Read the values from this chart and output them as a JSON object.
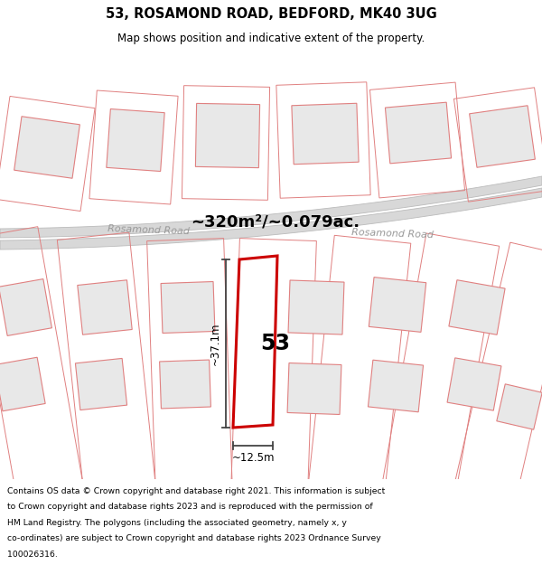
{
  "title": "53, ROSAMOND ROAD, BEDFORD, MK40 3UG",
  "subtitle": "Map shows position and indicative extent of the property.",
  "area_label": "~320m²/~0.079ac.",
  "road_label_left": "Rosamond Road",
  "road_label_right": "Rosamond Road",
  "property_number": "53",
  "dim_vertical": "~37.1m",
  "dim_horizontal": "~12.5m",
  "footer_lines": [
    "Contains OS data © Crown copyright and database right 2021. This information is subject",
    "to Crown copyright and database rights 2023 and is reproduced with the permission of",
    "HM Land Registry. The polygons (including the associated geometry, namely x, y",
    "co-ordinates) are subject to Crown copyright and database rights 2023 Ordnance Survey",
    "100026316."
  ],
  "bg_color": "#ffffff",
  "map_bg": "#ffffff",
  "building_fill": "#e8e8e8",
  "building_stroke": "#e08080",
  "plot_stroke": "#e08080",
  "road_fill": "#d8d8d8",
  "road_stroke": "#bbbbbb",
  "property_fill": "#ffffff",
  "property_stroke": "#cc0000",
  "dim_color": "#444444",
  "title_color": "#000000",
  "footer_color": "#000000"
}
